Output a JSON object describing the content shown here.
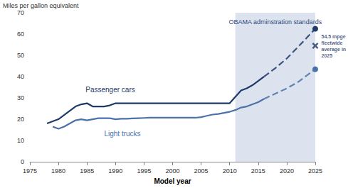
{
  "chart_data": {
    "type": "line",
    "xlabel": "Model year",
    "ylabel": "Miles per gallon equivalent",
    "x": [
      1978,
      1979,
      1980,
      1981,
      1982,
      1983,
      1984,
      1985,
      1986,
      1987,
      1988,
      1989,
      1990,
      1991,
      1992,
      1993,
      1994,
      1995,
      1996,
      1997,
      1998,
      1999,
      2000,
      2001,
      2002,
      2003,
      2004,
      2005,
      2006,
      2007,
      2008,
      2009,
      2010,
      2011,
      2012,
      2013,
      2014,
      2015,
      2016,
      2017,
      2018,
      2019,
      2020,
      2021,
      2022,
      2023,
      2024,
      2025
    ],
    "series": [
      {
        "name": "Passenger cars",
        "color": "#1f3a68",
        "marker": "circle",
        "values": [
          18,
          19,
          20,
          22,
          24,
          26,
          27,
          27.5,
          26,
          26,
          26,
          26.5,
          27.5,
          27.5,
          27.5,
          27.5,
          27.5,
          27.5,
          27.5,
          27.5,
          27.5,
          27.5,
          27.5,
          27.5,
          27.5,
          27.5,
          27.5,
          27.5,
          27.5,
          27.5,
          27.5,
          27.5,
          27.5,
          30.5,
          33.5,
          34.5,
          36,
          38,
          40,
          null,
          null,
          null,
          null,
          null,
          null,
          null,
          null,
          null
        ],
        "projected_values": [
          null,
          null,
          null,
          null,
          null,
          null,
          null,
          null,
          null,
          null,
          null,
          null,
          null,
          null,
          null,
          null,
          null,
          null,
          null,
          null,
          null,
          null,
          null,
          null,
          null,
          null,
          null,
          null,
          null,
          null,
          null,
          null,
          null,
          null,
          null,
          null,
          null,
          null,
          40,
          null,
          44,
          null,
          48.5,
          null,
          54,
          null,
          null,
          62.5
        ]
      },
      {
        "name": "Light trucks",
        "color": "#4a72a8",
        "marker": "circle",
        "values": [
          null,
          16.5,
          15.5,
          16.5,
          18,
          19.5,
          20,
          19.5,
          20,
          20.5,
          20.5,
          20.5,
          20,
          20.2,
          20.2,
          20.4,
          20.5,
          20.6,
          20.7,
          20.7,
          20.7,
          20.7,
          20.7,
          20.7,
          20.7,
          20.7,
          20.7,
          21,
          21.6,
          22.2,
          22.5,
          23,
          23.5,
          24.3,
          25.5,
          26,
          27,
          28,
          29.5,
          null,
          null,
          null,
          null,
          null,
          null,
          null,
          null,
          null
        ],
        "projected_values": [
          null,
          null,
          null,
          null,
          null,
          null,
          null,
          null,
          null,
          null,
          null,
          null,
          null,
          null,
          null,
          null,
          null,
          null,
          null,
          null,
          null,
          null,
          null,
          null,
          null,
          null,
          null,
          null,
          null,
          null,
          null,
          null,
          null,
          null,
          null,
          null,
          null,
          null,
          29.5,
          null,
          32,
          null,
          34.5,
          null,
          37.5,
          null,
          null,
          43.5
        ]
      }
    ],
    "shaded_region": {
      "label": "OBAMA adminstration standards",
      "start": 2011,
      "end": 2025
    },
    "annotations": [
      {
        "x": 2025,
        "value": 54.5,
        "label": "54.5 mpge fleetwide average in 2025",
        "marker": "cross"
      }
    ],
    "xlim": [
      1975,
      2025
    ],
    "xticks": [
      1975,
      1980,
      1985,
      1990,
      1995,
      2000,
      2005,
      2010,
      2015,
      2020,
      2025
    ],
    "ylim": [
      0,
      70
    ],
    "yticks": [
      0,
      10,
      20,
      30,
      40,
      50,
      60,
      70
    ],
    "grid": false
  }
}
